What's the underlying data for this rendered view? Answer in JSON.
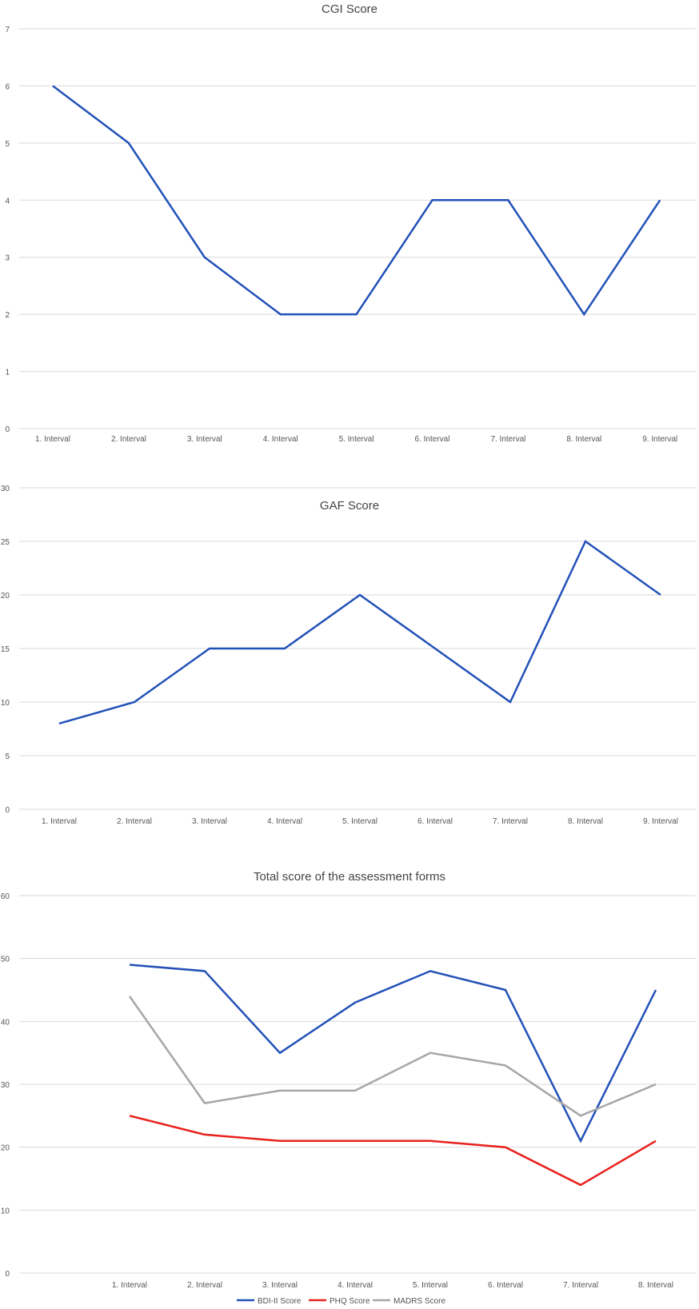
{
  "chart_data": [
    {
      "type": "line",
      "title": "CGI Score",
      "xlabel": "",
      "ylabel": "",
      "categories": [
        "1. Interval",
        "2. Interval",
        "3. Interval",
        "4. Interval",
        "5. Interval",
        "6. Interval",
        "7. Interval",
        "8. Interval",
        "9. Interval"
      ],
      "ylim": [
        0,
        7
      ],
      "yticks": [
        "0",
        "1",
        "2",
        "3",
        "4",
        "5",
        "6",
        "7"
      ],
      "grid": true,
      "series": [
        {
          "values": [
            6,
            5,
            3,
            2,
            2,
            4,
            4,
            2,
            4
          ],
          "color": "#2251B8"
        }
      ]
    },
    {
      "type": "line",
      "title": "GAF Score",
      "xlabel": "",
      "ylabel": "",
      "categories": [
        "1. Interval",
        "2. Interval",
        "3. Interval",
        "4. Interval",
        "5. Interval",
        "6. Interval",
        "7. Interval",
        "8. Interval",
        "9. Interval"
      ],
      "ylim": [
        0,
        30
      ],
      "yticks": [
        "0",
        "5",
        "10",
        "15",
        "20",
        "25",
        "30"
      ],
      "grid": true,
      "series": [
        {
          "values": [
            8,
            10,
            15,
            15,
            20,
            15,
            10,
            25,
            20
          ],
          "color": "#2251B8"
        }
      ]
    },
    {
      "type": "line",
      "title": "Total score of the assessment forms",
      "xlabel": "",
      "ylabel": "",
      "categories": [
        "1. Interval",
        "2. Interval",
        "3. Interval",
        "4. Interval",
        "5. Interval",
        "6. Interval",
        "7. Interval",
        "8. Interval"
      ],
      "ylim": [
        0,
        60
      ],
      "yticks": [
        "0",
        "10",
        "20",
        "30",
        "40",
        "50",
        "60"
      ],
      "grid": true,
      "legend_position": "bottom",
      "series": [
        {
          "name": "BDI-II Score",
          "values": [
            49,
            48,
            35,
            43,
            48,
            45,
            21,
            45
          ],
          "color": "#2251B8"
        },
        {
          "name": "PHQ Score",
          "values": [
            25,
            22,
            21,
            21,
            21,
            20,
            14,
            21
          ],
          "color": "#E8211C"
        },
        {
          "name": "MADRS Score",
          "values": [
            44,
            27,
            29,
            29,
            35,
            33,
            25,
            30
          ],
          "color": "#A6A6A6"
        }
      ]
    }
  ]
}
